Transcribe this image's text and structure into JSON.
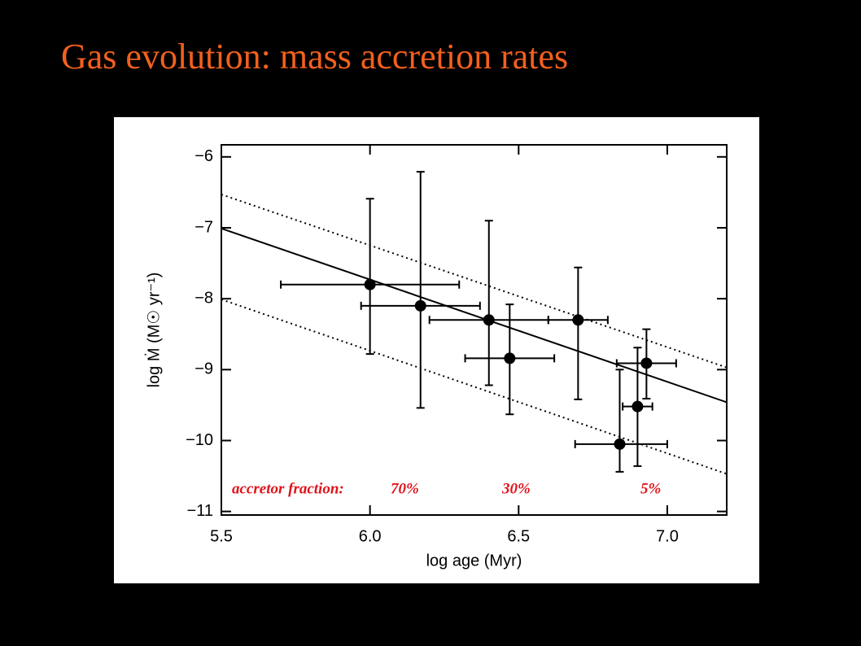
{
  "chart_data": {
    "type": "scatter",
    "title": "Gas evolution: mass accretion rates",
    "x_label": "log age (Myr)",
    "y_label": "log Ṁ (M☉ yr⁻¹)",
    "xlim": [
      5.5,
      7.2
    ],
    "ylim": [
      -11.05,
      -5.83
    ],
    "xticks": [
      {
        "value": 5.5,
        "label": "5.5"
      },
      {
        "value": 6.0,
        "label": "6.0"
      },
      {
        "value": 6.5,
        "label": "6.5"
      },
      {
        "value": 7.0,
        "label": "7.0"
      }
    ],
    "yticks": [
      {
        "value": -6,
        "label": "−6"
      },
      {
        "value": -7,
        "label": "−7"
      },
      {
        "value": -8,
        "label": "−8"
      },
      {
        "value": -9,
        "label": "−9"
      },
      {
        "value": -10,
        "label": "−10"
      },
      {
        "value": -11,
        "label": "−11"
      }
    ],
    "points": {
      "color": "#000000",
      "x": [
        6.0,
        6.17,
        6.4,
        6.47,
        6.7,
        6.84,
        6.9,
        6.93
      ],
      "values": [
        -7.8,
        -8.1,
        -8.3,
        -8.84,
        -8.3,
        -10.05,
        -9.52,
        -8.91
      ],
      "xerr_minus": [
        0.3,
        0.2,
        0.2,
        0.15,
        0.1,
        0.15,
        0.05,
        0.1
      ],
      "xerr_plus": [
        0.3,
        0.2,
        0.2,
        0.15,
        0.1,
        0.16,
        0.05,
        0.1
      ],
      "yerr_minus": [
        0.98,
        1.44,
        0.92,
        0.79,
        1.12,
        0.39,
        0.84,
        0.5
      ],
      "yerr_plus": [
        1.21,
        1.89,
        1.4,
        0.76,
        0.74,
        1.05,
        0.83,
        0.48
      ]
    },
    "lines": [
      {
        "style": "solid",
        "x": [
          5.5,
          7.2
        ],
        "values": [
          -7.01,
          -9.46
        ]
      },
      {
        "style": "dotted",
        "x": [
          5.5,
          7.2
        ],
        "values": [
          -6.53,
          -8.97
        ]
      },
      {
        "style": "dotted",
        "x": [
          5.5,
          7.2
        ],
        "values": [
          -8.01,
          -10.47
        ]
      }
    ],
    "annotation_labels": [
      "accretor fraction:",
      "70%",
      "30%",
      "5%"
    ]
  }
}
